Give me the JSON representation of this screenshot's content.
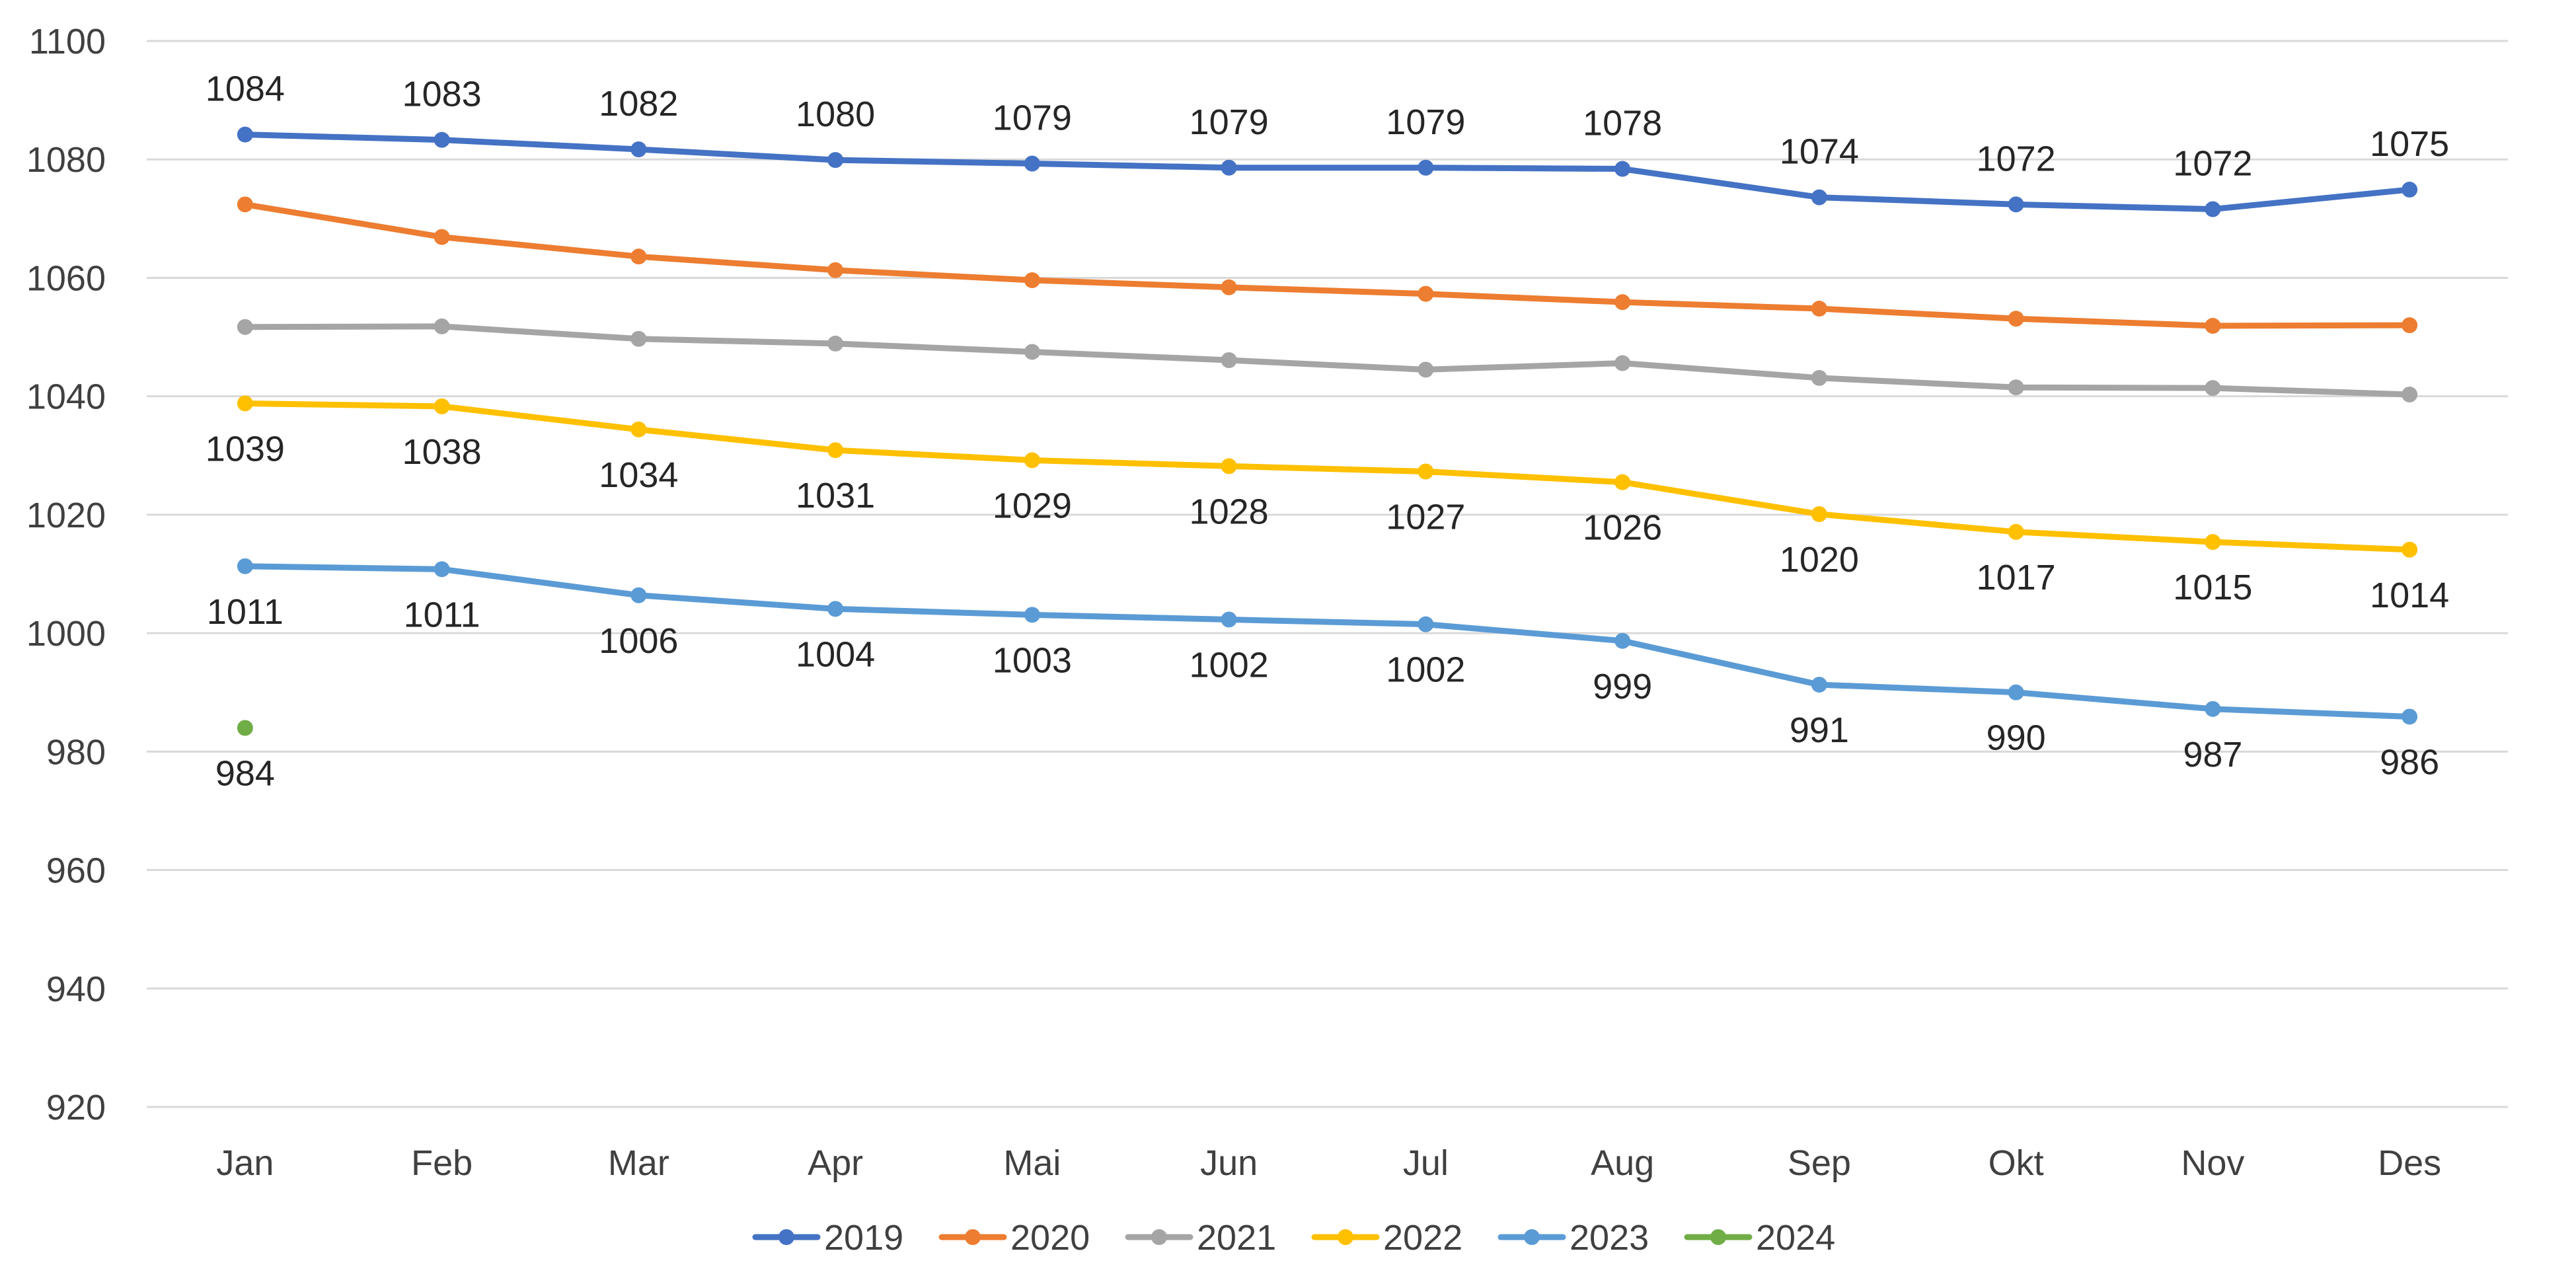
{
  "chart_data": {
    "type": "line",
    "title": "",
    "xlabel": "",
    "ylabel": "",
    "categories": [
      "Jan",
      "Feb",
      "Mar",
      "Apr",
      "Mai",
      "Jun",
      "Jul",
      "Aug",
      "Sep",
      "Okt",
      "Nov",
      "Des"
    ],
    "ylim": [
      920,
      1100
    ],
    "yticks": [
      920,
      940,
      960,
      980,
      1000,
      1020,
      1040,
      1060,
      1080,
      1100
    ],
    "grid": true,
    "legend_position": "bottom",
    "series": [
      {
        "name": "2019",
        "color": "#4472C4",
        "values": [
          1084.2,
          1083.3,
          1081.7,
          1079.9,
          1079.3,
          1078.6,
          1078.6,
          1078.4,
          1073.6,
          1072.4,
          1071.6,
          1074.9
        ],
        "labels": [
          "1084",
          "1083",
          "1082",
          "1080",
          "1079",
          "1079",
          "1079",
          "1078",
          "1074",
          "1072",
          "1072",
          "1075"
        ],
        "label_position": "above"
      },
      {
        "name": "2020",
        "color": "#ED7D31",
        "values": [
          1072.4,
          1066.9,
          1063.6,
          1061.3,
          1059.6,
          1058.4,
          1057.3,
          1055.9,
          1054.8,
          1053.1,
          1051.9,
          1052.0
        ],
        "labels": [],
        "label_position": "none"
      },
      {
        "name": "2021",
        "color": "#A5A5A5",
        "values": [
          1051.7,
          1051.8,
          1049.7,
          1048.9,
          1047.5,
          1046.1,
          1044.5,
          1045.6,
          1043.1,
          1041.5,
          1041.4,
          1040.3
        ],
        "labels": [],
        "label_position": "none"
      },
      {
        "name": "2022",
        "color": "#FFC000",
        "values": [
          1038.8,
          1038.3,
          1034.4,
          1030.9,
          1029.2,
          1028.2,
          1027.3,
          1025.5,
          1020.1,
          1017.1,
          1015.4,
          1014.1
        ],
        "labels": [
          "1039",
          "1038",
          "1034",
          "1031",
          "1029",
          "1028",
          "1027",
          "1026",
          "1020",
          "1017",
          "1015",
          "1014"
        ],
        "label_position": "below"
      },
      {
        "name": "2023",
        "color": "#5B9BD5",
        "values": [
          1011.3,
          1010.8,
          1006.4,
          1004.1,
          1003.1,
          1002.3,
          1001.5,
          998.7,
          991.3,
          990.0,
          987.2,
          985.9
        ],
        "labels": [
          "1011",
          "1011",
          "1006",
          "1004",
          "1003",
          "1002",
          "1002",
          "999",
          "991",
          "990",
          "987",
          "986"
        ],
        "label_position": "below"
      },
      {
        "name": "2024",
        "color": "#70AD47",
        "values": [
          984.0,
          null,
          null,
          null,
          null,
          null,
          null,
          null,
          null,
          null,
          null,
          null
        ],
        "labels": [
          "984",
          "",
          "",
          "",
          "",
          "",
          "",
          "",
          "",
          "",
          "",
          ""
        ],
        "label_position": "below"
      }
    ]
  }
}
